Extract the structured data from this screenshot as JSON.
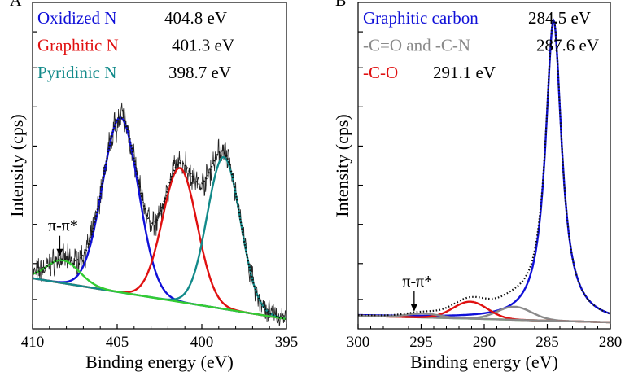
{
  "chart_data": [
    {
      "panel_label": "A",
      "type": "line",
      "title": "",
      "xlabel": "Binding energy (eV)",
      "ylabel": "Intensity (cps)",
      "xlim": [
        410,
        395
      ],
      "ylim": [
        0,
        1.0
      ],
      "x_ticks": [
        410,
        405,
        400,
        395
      ],
      "x_tick_labels": [
        "410",
        "405",
        "400",
        "395"
      ],
      "y_tick_values": [
        0.09,
        0.2,
        0.32,
        0.44,
        0.56,
        0.68,
        0.8,
        0.91
      ],
      "y_tick_labels_shown": false,
      "legend_position": "top-left",
      "legend": [
        {
          "name": "Oxidized N",
          "value": "404.8 eV",
          "color": "#1010d8"
        },
        {
          "name": "Graphitic N",
          "value": "401.3 eV",
          "color": "#e01010"
        },
        {
          "name": "Pyridinic N",
          "value": "398.7 eV",
          "color": "#128a8a"
        }
      ],
      "series": [
        {
          "name": "Oxidized N",
          "type": "gaussian",
          "center": 404.8,
          "height": 0.535,
          "fwhm": 2.5,
          "color": "#1010d8"
        },
        {
          "name": "Graphitic N",
          "type": "gaussian",
          "center": 401.3,
          "height": 0.41,
          "fwhm": 2.4,
          "color": "#e01010"
        },
        {
          "name": "Pyridinic N",
          "type": "gaussian",
          "center": 398.7,
          "height": 0.465,
          "fwhm": 2.3,
          "color": "#128a8a"
        },
        {
          "name": "π-π*",
          "type": "gaussian",
          "center": 408.2,
          "height": 0.07,
          "fwhm": 2.3,
          "color": "#33cc33"
        },
        {
          "name": "Background",
          "type": "linear",
          "from": [
            410,
            0.155
          ],
          "to": [
            395,
            0.03
          ],
          "color": "#33dd33"
        },
        {
          "name": "Raw data",
          "type": "noisy",
          "color": "#222222"
        },
        {
          "name": "Fitted envelope",
          "type": "dotted-sum",
          "color": "#111111"
        }
      ],
      "annotations": [
        {
          "text": "π-π*",
          "x": 408.2,
          "y": 0.3
        }
      ]
    },
    {
      "panel_label": "B",
      "type": "line",
      "title": "",
      "xlabel": "Binding energy (eV)",
      "ylabel": "Intensity (cps)",
      "xlim": [
        300,
        280
      ],
      "ylim": [
        0,
        1.0
      ],
      "x_ticks": [
        300,
        295,
        290,
        285,
        280
      ],
      "x_tick_labels": [
        "300",
        "295",
        "290",
        "285",
        "280"
      ],
      "y_tick_values": [
        0.09,
        0.2,
        0.32,
        0.44,
        0.56,
        0.68,
        0.8,
        0.91
      ],
      "y_tick_labels_shown": false,
      "legend_position": "top-left",
      "legend": [
        {
          "name": "Graphitic carbon",
          "value": "284.5 eV",
          "color": "#1010d8"
        },
        {
          "name": "-C=O and -C-N",
          "value": "287.6 eV",
          "color": "#8a8a8a"
        },
        {
          "name": "-C-O",
          "value": "291.1 eV",
          "color": "#e01010"
        }
      ],
      "series": [
        {
          "name": "Graphitic carbon",
          "type": "lorentzian",
          "center": 284.5,
          "height": 0.92,
          "fwhm": 1.55,
          "color": "#1010d8"
        },
        {
          "name": "-C=O and -C-N",
          "type": "gaussian",
          "center": 287.6,
          "height": 0.04,
          "fwhm": 3.2,
          "color": "#8a8a8a"
        },
        {
          "name": "-C-O",
          "type": "gaussian",
          "center": 291.1,
          "height": 0.052,
          "fwhm": 3.2,
          "color": "#e01010"
        },
        {
          "name": "π-π*",
          "type": "gaussian",
          "center": 294.8,
          "height": 0.012,
          "fwhm": 3.0,
          "color": "#8a8a8a"
        },
        {
          "name": "Background",
          "type": "linear",
          "from": [
            300,
            0.04
          ],
          "to": [
            280,
            0.02
          ],
          "color": "#33dd33"
        },
        {
          "name": "Fitted envelope",
          "type": "dotted-sum",
          "color": "#111111"
        }
      ],
      "annotations": [
        {
          "text": "π-π*",
          "x": 295.3,
          "y": 0.13
        }
      ]
    }
  ]
}
